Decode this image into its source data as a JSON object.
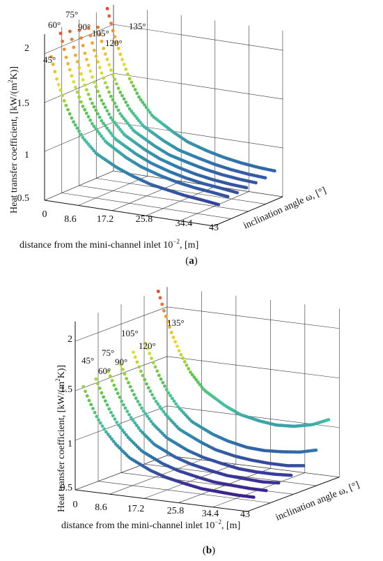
{
  "chart_data": [
    {
      "panel": "a",
      "caption_open": "(",
      "caption_letter": "a",
      "caption_close": ")",
      "type": "scatter",
      "x_ticks": [
        "0",
        "8.6",
        "17.2",
        "25.8",
        "34.4",
        "43"
      ],
      "y_ticks": [
        "0.5",
        "1",
        "1.5",
        "2"
      ],
      "xlabel": "distance from the mini-channel inlet 10",
      "xlabel_exp": "−2",
      "xlabel_unit": ", [m]",
      "ylabel_main": "Heat transfer coefficient, [kW/(m",
      "ylabel_exp": "2",
      "ylabel_end": "K)]",
      "zlabel": "inclination angle ω, [°]",
      "xlim": [
        0,
        43
      ],
      "ylim": [
        0.5,
        2.2
      ],
      "x": [
        0.5,
        2,
        4,
        6,
        8.6,
        12,
        17.2,
        21,
        25.8,
        30,
        34.4,
        39,
        43
      ],
      "series": [
        {
          "name": "45°",
          "values": [
            1.95,
            1.72,
            1.5,
            1.33,
            1.17,
            1.03,
            0.92,
            0.86,
            0.8,
            0.77,
            0.74,
            0.72,
            0.7
          ]
        },
        {
          "name": "60°",
          "values": [
            2.15,
            1.9,
            1.65,
            1.45,
            1.27,
            1.11,
            0.98,
            0.91,
            0.85,
            0.81,
            0.78,
            0.76,
            0.74
          ]
        },
        {
          "name": "75°",
          "values": [
            2.13,
            1.88,
            1.63,
            1.44,
            1.26,
            1.1,
            0.98,
            0.91,
            0.85,
            0.81,
            0.78,
            0.76,
            0.74
          ]
        },
        {
          "name": "90°",
          "values": [
            2.1,
            1.86,
            1.62,
            1.43,
            1.25,
            1.1,
            0.98,
            0.91,
            0.85,
            0.81,
            0.78,
            0.76,
            0.75
          ]
        },
        {
          "name": "105°",
          "values": [
            2.08,
            1.85,
            1.62,
            1.43,
            1.25,
            1.1,
            0.98,
            0.91,
            0.86,
            0.82,
            0.79,
            0.77,
            0.76
          ]
        },
        {
          "name": "120°",
          "values": [
            2.05,
            1.83,
            1.61,
            1.43,
            1.26,
            1.11,
            0.99,
            0.92,
            0.87,
            0.83,
            0.8,
            0.78,
            0.77
          ]
        },
        {
          "name": "135°",
          "values": [
            2.2,
            1.97,
            1.73,
            1.53,
            1.34,
            1.17,
            1.04,
            0.96,
            0.9,
            0.86,
            0.83,
            0.81,
            0.8
          ]
        }
      ]
    },
    {
      "panel": "b",
      "caption_open": "(",
      "caption_letter": "b",
      "caption_close": ")",
      "type": "scatter",
      "x_ticks": [
        "0",
        "8.6",
        "17.2",
        "25.8",
        "34.4",
        "43"
      ],
      "y_ticks": [
        "0.5",
        "1",
        "1.5",
        "2"
      ],
      "xlabel": "distance from the mini-channel inlet 10",
      "xlabel_exp": "−2",
      "xlabel_unit": ", [m]",
      "ylabel_main": "Heat transfer coefficient, [kW/(m",
      "ylabel_exp": "2",
      "ylabel_end": "K)]",
      "zlabel": "inclination angle ω, [°]",
      "xlim": [
        0,
        43
      ],
      "ylim": [
        0.5,
        2.2
      ],
      "x": [
        0.5,
        2,
        4,
        6,
        8.6,
        12,
        17.2,
        21,
        25.8,
        30,
        34.4,
        39,
        43
      ],
      "series": [
        {
          "name": "45°",
          "values": [
            1.52,
            1.38,
            1.22,
            1.1,
            0.98,
            0.86,
            0.76,
            0.71,
            0.67,
            0.64,
            0.63,
            0.62,
            0.62
          ]
        },
        {
          "name": "60°",
          "values": [
            1.55,
            1.41,
            1.25,
            1.12,
            1.0,
            0.88,
            0.78,
            0.73,
            0.69,
            0.66,
            0.65,
            0.64,
            0.64
          ]
        },
        {
          "name": "75°",
          "values": [
            1.58,
            1.44,
            1.28,
            1.15,
            1.02,
            0.9,
            0.8,
            0.75,
            0.71,
            0.68,
            0.67,
            0.66,
            0.67
          ]
        },
        {
          "name": "90°",
          "values": [
            1.6,
            1.46,
            1.3,
            1.17,
            1.04,
            0.92,
            0.82,
            0.77,
            0.73,
            0.7,
            0.69,
            0.69,
            0.7
          ]
        },
        {
          "name": "105°",
          "values": [
            1.68,
            1.53,
            1.36,
            1.22,
            1.09,
            0.96,
            0.86,
            0.8,
            0.76,
            0.74,
            0.73,
            0.73,
            0.75
          ]
        },
        {
          "name": "120°",
          "values": [
            1.72,
            1.57,
            1.4,
            1.26,
            1.12,
            0.99,
            0.89,
            0.84,
            0.8,
            0.79,
            0.8,
            0.82,
            0.86
          ]
        },
        {
          "name": "135°",
          "values": [
            2.2,
            2.0,
            1.78,
            1.6,
            1.42,
            1.26,
            1.13,
            1.06,
            1.02,
            1.0,
            1.01,
            1.05,
            1.12
          ]
        }
      ]
    }
  ],
  "colors": {
    "scale": [
      "#3d1a8a",
      "#2f7db0",
      "#44c1a2",
      "#5cc54a",
      "#e2e227",
      "#f3a22c",
      "#e7452b"
    ]
  }
}
